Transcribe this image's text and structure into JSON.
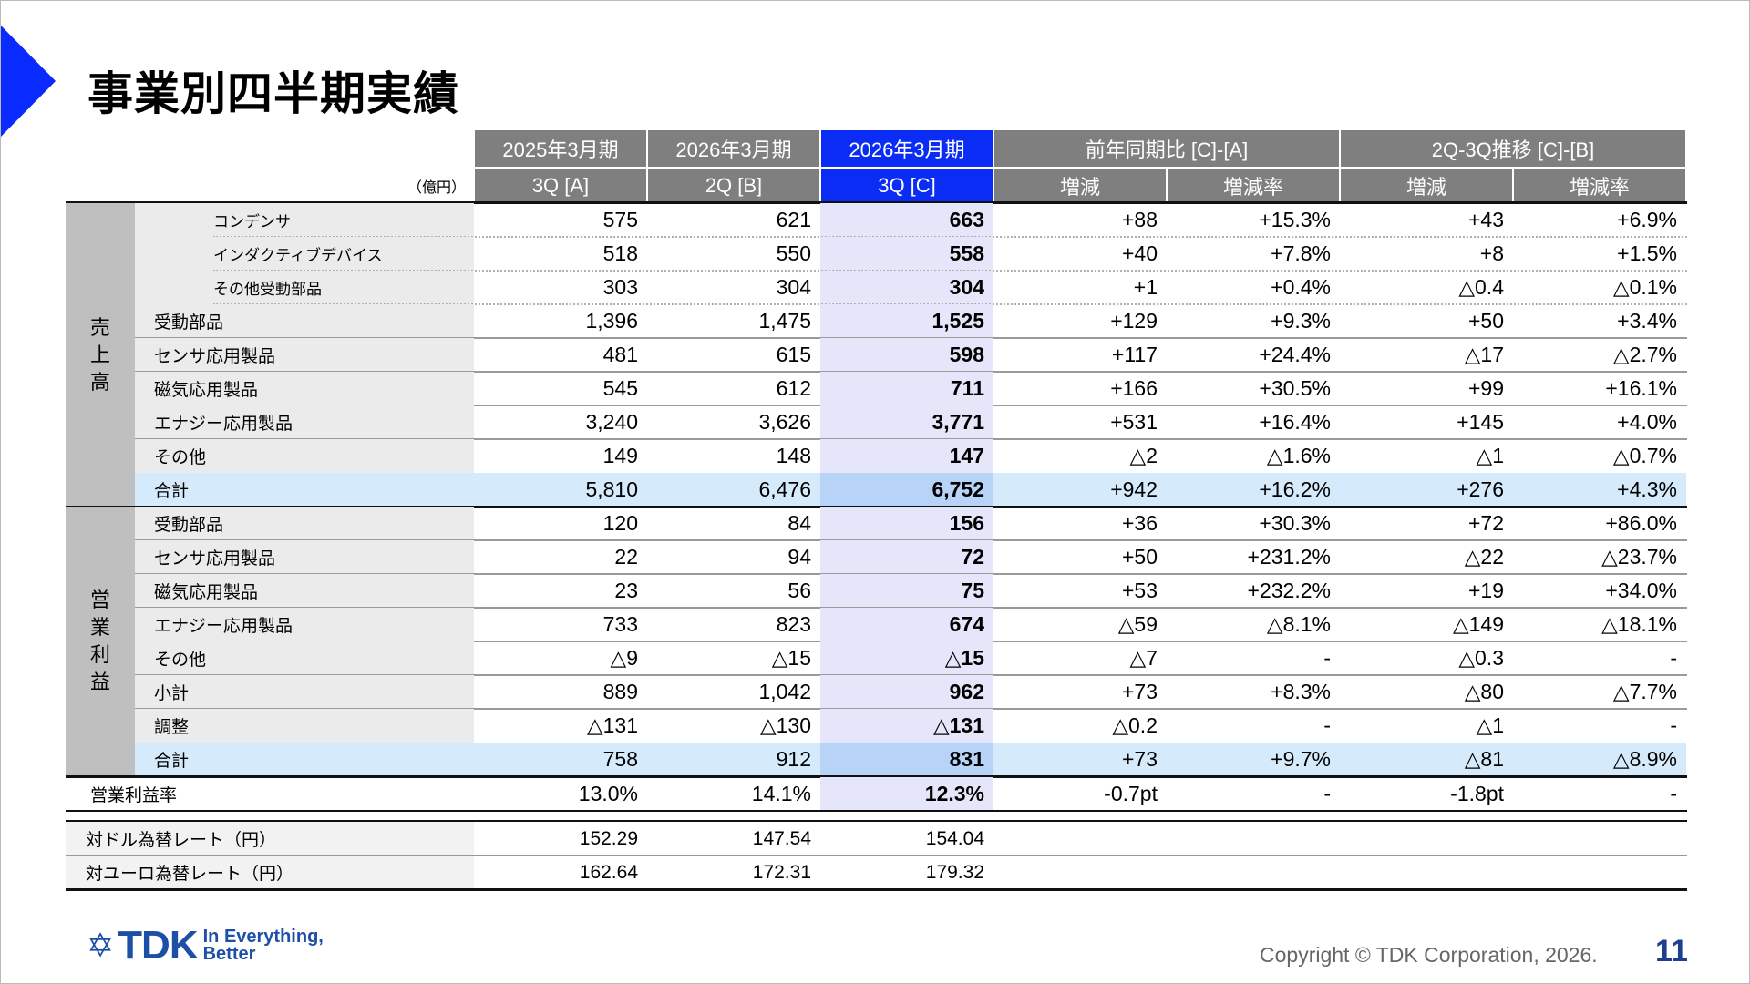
{
  "title": "事業別四半期実績",
  "unit": "（億円）",
  "colors": {
    "accent": "#0a2bff",
    "header_gray": "#7f7f7f",
    "current_col": "#e6e6fb",
    "total_row": "#d5ebfb"
  },
  "header": {
    "groups": [
      "2025年3月期",
      "2026年3月期",
      "2026年3月期",
      "前年同期比 [C]-[A]",
      "2Q-3Q推移 [C]-[B]"
    ],
    "cols": [
      "3Q [A]",
      "2Q [B]",
      "3Q [C]",
      "増減",
      "増減率",
      "増減",
      "増減率"
    ]
  },
  "sales": {
    "label": [
      "売",
      "上",
      "高"
    ],
    "rows": [
      {
        "label": "コンデンサ",
        "kind": "sub",
        "values": [
          "575",
          "621",
          "663",
          "+88",
          "+15.3%",
          "+43",
          "+6.9%"
        ]
      },
      {
        "label": "インダクティブデバイス",
        "kind": "sub",
        "values": [
          "518",
          "550",
          "558",
          "+40",
          "+7.8%",
          "+8",
          "+1.5%"
        ]
      },
      {
        "label": "その他受動部品",
        "kind": "sub",
        "values": [
          "303",
          "304",
          "304",
          "+1",
          "+0.4%",
          "△0.4",
          "△0.1%"
        ]
      },
      {
        "label": "受動部品",
        "kind": "normal",
        "values": [
          "1,396",
          "1,475",
          "1,525",
          "+129",
          "+9.3%",
          "+50",
          "+3.4%"
        ]
      },
      {
        "label": "センサ応用製品",
        "kind": "normal",
        "values": [
          "481",
          "615",
          "598",
          "+117",
          "+24.4%",
          "△17",
          "△2.7%"
        ]
      },
      {
        "label": "磁気応用製品",
        "kind": "normal",
        "values": [
          "545",
          "612",
          "711",
          "+166",
          "+30.5%",
          "+99",
          "+16.1%"
        ]
      },
      {
        "label": "エナジー応用製品",
        "kind": "normal",
        "values": [
          "3,240",
          "3,626",
          "3,771",
          "+531",
          "+16.4%",
          "+145",
          "+4.0%"
        ]
      },
      {
        "label": "その他",
        "kind": "normal",
        "values": [
          "149",
          "148",
          "147",
          "△2",
          "△1.6%",
          "△1",
          "△0.7%"
        ]
      },
      {
        "label": "合計",
        "kind": "total",
        "values": [
          "5,810",
          "6,476",
          "6,752",
          "+942",
          "+16.2%",
          "+276",
          "+4.3%"
        ]
      }
    ]
  },
  "operating_profit": {
    "label": [
      "営",
      "業",
      "利",
      "益"
    ],
    "rows": [
      {
        "label": "受動部品",
        "kind": "normal",
        "values": [
          "120",
          "84",
          "156",
          "+36",
          "+30.3%",
          "+72",
          "+86.0%"
        ]
      },
      {
        "label": "センサ応用製品",
        "kind": "normal",
        "values": [
          "22",
          "94",
          "72",
          "+50",
          "+231.2%",
          "△22",
          "△23.7%"
        ]
      },
      {
        "label": "磁気応用製品",
        "kind": "normal",
        "values": [
          "23",
          "56",
          "75",
          "+53",
          "+232.2%",
          "+19",
          "+34.0%"
        ]
      },
      {
        "label": "エナジー応用製品",
        "kind": "normal",
        "values": [
          "733",
          "823",
          "674",
          "△59",
          "△8.1%",
          "△149",
          "△18.1%"
        ]
      },
      {
        "label": "その他",
        "kind": "normal",
        "values": [
          "△9",
          "△15",
          "△15",
          "△7",
          "-",
          "△0.3",
          "-"
        ]
      },
      {
        "label": "小計",
        "kind": "normal",
        "values": [
          "889",
          "1,042",
          "962",
          "+73",
          "+8.3%",
          "△80",
          "△7.7%"
        ]
      },
      {
        "label": "調整",
        "kind": "normal",
        "values": [
          "△131",
          "△130",
          "△131",
          "△0.2",
          "-",
          "△1",
          "-"
        ]
      },
      {
        "label": "合計",
        "kind": "total",
        "values": [
          "758",
          "912",
          "831",
          "+73",
          "+9.7%",
          "△81",
          "△8.9%"
        ]
      }
    ]
  },
  "margin": {
    "label": "営業利益率",
    "values": [
      "13.0%",
      "14.1%",
      "12.3%",
      "-0.7pt",
      "-",
      "-1.8pt",
      "-"
    ]
  },
  "fx": [
    {
      "label": "対ドル為替レート（円）",
      "values": [
        "152.29",
        "147.54",
        "154.04"
      ]
    },
    {
      "label": "対ユーロ為替レート（円）",
      "values": [
        "162.64",
        "172.31",
        "179.32"
      ]
    }
  ],
  "footer": {
    "logo": "TDK",
    "tagline": [
      "In Everything,",
      "Better"
    ],
    "copyright": "Copyright © TDK Corporation, 2026.",
    "page": "11"
  }
}
